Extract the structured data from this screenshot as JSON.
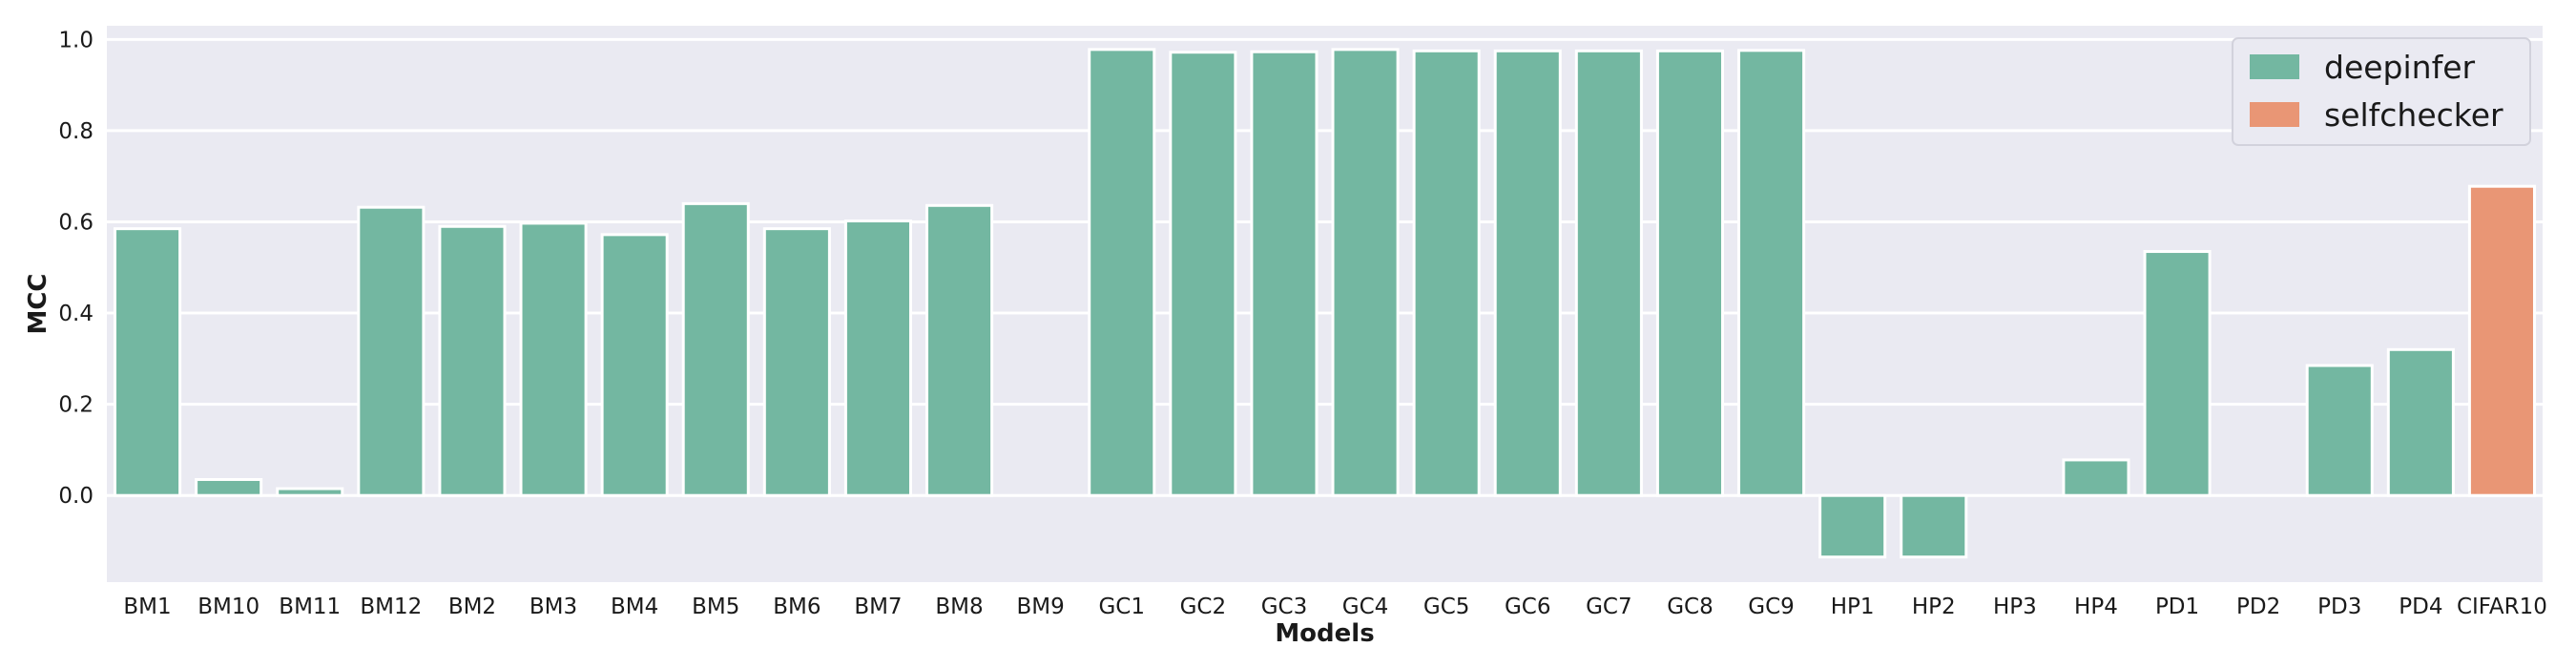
{
  "chart_data": {
    "type": "bar",
    "title": "",
    "xlabel": "Models",
    "ylabel": "MCC",
    "ylim": [
      -0.19,
      1.03
    ],
    "yticks": [
      "0.0",
      "0.2",
      "0.4",
      "0.6",
      "0.8",
      "1.0"
    ],
    "grid": true,
    "legend_position": "top-right",
    "categories": [
      "BM1",
      "BM10",
      "BM11",
      "BM12",
      "BM2",
      "BM3",
      "BM4",
      "BM5",
      "BM6",
      "BM7",
      "BM8",
      "BM9",
      "GC1",
      "GC2",
      "GC3",
      "GC4",
      "GC5",
      "GC6",
      "GC7",
      "GC8",
      "GC9",
      "HP1",
      "HP2",
      "HP3",
      "HP4",
      "PD1",
      "PD2",
      "PD3",
      "PD4",
      "CIFAR10"
    ],
    "series": [
      {
        "name": "deepinfer",
        "color": "#73b7a1",
        "values": [
          0.585,
          0.035,
          0.015,
          0.632,
          0.59,
          0.597,
          0.572,
          0.64,
          0.585,
          0.602,
          0.636,
          null,
          0.978,
          0.972,
          0.973,
          0.978,
          0.975,
          0.975,
          0.975,
          0.975,
          0.976,
          -0.135,
          -0.135,
          null,
          0.078,
          0.535,
          null,
          0.285,
          0.32,
          null
        ]
      },
      {
        "name": "selfchecker",
        "color": "#e99675",
        "values": [
          null,
          null,
          null,
          null,
          null,
          null,
          null,
          null,
          null,
          null,
          null,
          null,
          null,
          null,
          null,
          null,
          null,
          null,
          null,
          null,
          null,
          null,
          null,
          null,
          null,
          null,
          null,
          null,
          null,
          0.678
        ]
      }
    ]
  }
}
